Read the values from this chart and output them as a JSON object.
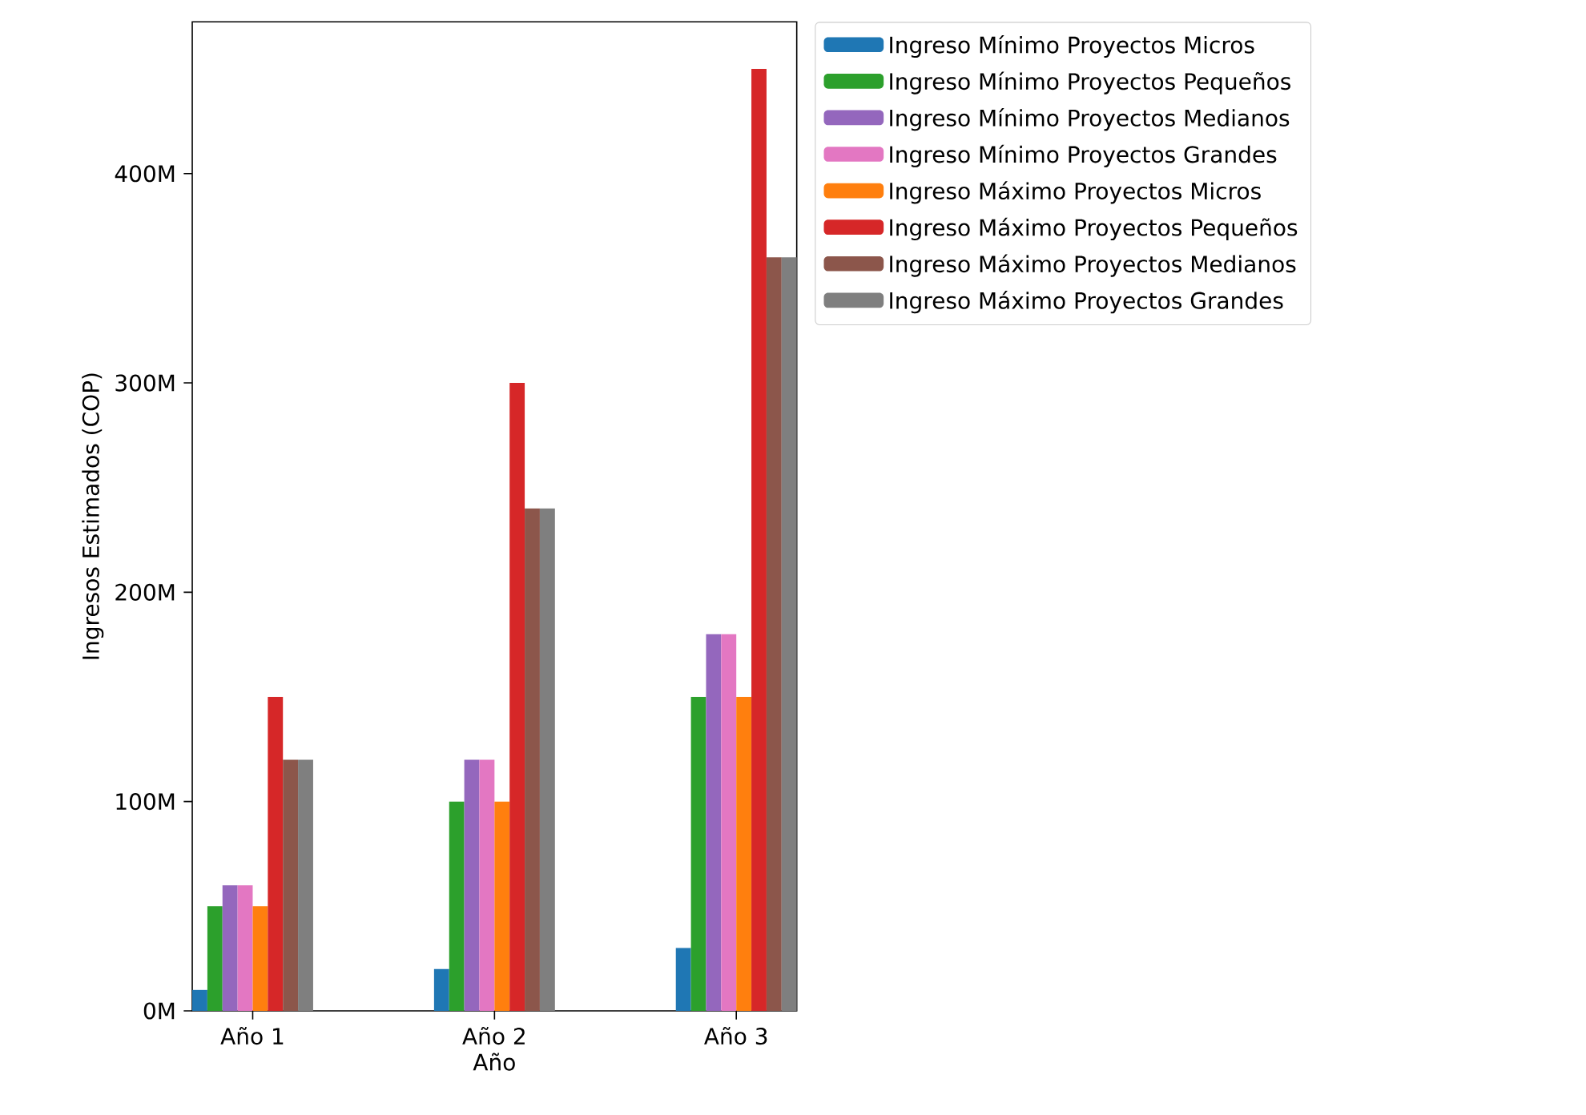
{
  "chart_data": {
    "type": "bar",
    "xlabel": "Año",
    "ylabel": "Ingresos Estimados (COP)",
    "categories": [
      "Año 1",
      "Año 2",
      "Año 3"
    ],
    "series": [
      {
        "name": "Ingreso Mínimo Proyectos Micros",
        "color": "#1f77b4",
        "values": [
          10,
          20,
          30
        ]
      },
      {
        "name": "Ingreso Mínimo Proyectos Pequeños",
        "color": "#2ca02c",
        "values": [
          50,
          100,
          150
        ]
      },
      {
        "name": "Ingreso Mínimo Proyectos Medianos",
        "color": "#9467bd",
        "values": [
          60,
          120,
          180
        ]
      },
      {
        "name": "Ingreso Mínimo Proyectos Grandes",
        "color": "#e377c2",
        "values": [
          60,
          120,
          180
        ]
      },
      {
        "name": "Ingreso Máximo Proyectos Micros",
        "color": "#ff7f0e",
        "values": [
          50,
          100,
          150
        ]
      },
      {
        "name": "Ingreso Máximo Proyectos Pequeños",
        "color": "#d62728",
        "values": [
          150,
          300,
          450
        ]
      },
      {
        "name": "Ingreso Máximo Proyectos Medianos",
        "color": "#8c564b",
        "values": [
          120,
          240,
          360
        ]
      },
      {
        "name": "Ingreso Máximo Proyectos Grandes",
        "color": "#7f7f7f",
        "values": [
          120,
          240,
          360
        ]
      }
    ],
    "ylim": [
      0,
      472.5
    ],
    "yticks": [
      {
        "value": 0,
        "label": "0M"
      },
      {
        "value": 100,
        "label": "100M"
      },
      {
        "value": 200,
        "label": "200M"
      },
      {
        "value": 300,
        "label": "300M"
      },
      {
        "value": 400,
        "label": "400M"
      }
    ],
    "grid": false,
    "legend": "top right"
  }
}
